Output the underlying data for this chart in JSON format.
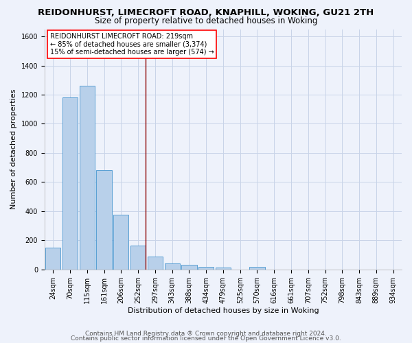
{
  "title_line1": "REIDONHURST, LIMECROFT ROAD, KNAPHILL, WOKING, GU21 2TH",
  "title_line2": "Size of property relative to detached houses in Woking",
  "xlabel": "Distribution of detached houses by size in Woking",
  "ylabel": "Number of detached properties",
  "footer_line1": "Contains HM Land Registry data ® Crown copyright and database right 2024.",
  "footer_line2": "Contains public sector information licensed under the Open Government Licence v3.0.",
  "categories": [
    "24sqm",
    "70sqm",
    "115sqm",
    "161sqm",
    "206sqm",
    "252sqm",
    "297sqm",
    "343sqm",
    "388sqm",
    "434sqm",
    "479sqm",
    "525sqm",
    "570sqm",
    "616sqm",
    "661sqm",
    "707sqm",
    "752sqm",
    "798sqm",
    "843sqm",
    "889sqm",
    "934sqm"
  ],
  "values": [
    150,
    1180,
    1260,
    680,
    375,
    165,
    90,
    40,
    30,
    18,
    15,
    0,
    18,
    0,
    0,
    0,
    0,
    0,
    0,
    0,
    0
  ],
  "bar_color": "#b8d0ea",
  "bar_edge_color": "#5a9fd4",
  "background_color": "#eef2fb",
  "grid_color": "#c8d4e8",
  "vline_x": 5.45,
  "vline_color": "#8b0000",
  "ylim": [
    0,
    1650
  ],
  "yticks": [
    0,
    200,
    400,
    600,
    800,
    1000,
    1200,
    1400,
    1600
  ],
  "annotation_box_text": "REIDONHURST LIMECROFT ROAD: 219sqm\n← 85% of detached houses are smaller (3,374)\n15% of semi-detached houses are larger (574) →",
  "title_fontsize": 9.5,
  "subtitle_fontsize": 8.5,
  "axis_label_fontsize": 8,
  "tick_fontsize": 7,
  "annot_fontsize": 7,
  "footer_fontsize": 6.5
}
